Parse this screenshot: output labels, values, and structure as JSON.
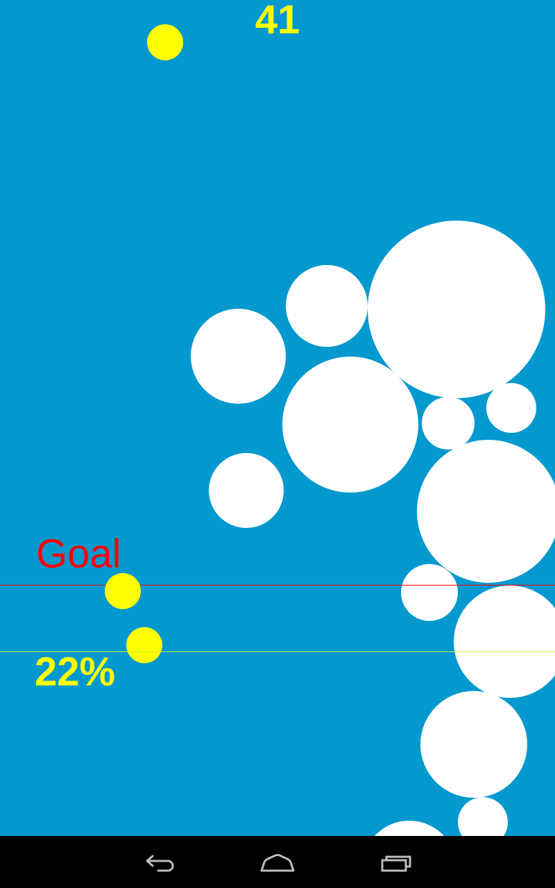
{
  "score": "41",
  "goal": {
    "label": "Goal",
    "color": "#ff0000"
  },
  "progress": {
    "label": "22%",
    "value": 22,
    "color": "#ffff00"
  },
  "colors": {
    "background": "#0399cf",
    "bubble": "#ffffff",
    "ball": "#ffff00",
    "navbar": "#000000"
  },
  "navbar": {
    "icons": [
      "back-icon",
      "home-icon",
      "recent-apps-icon"
    ]
  }
}
